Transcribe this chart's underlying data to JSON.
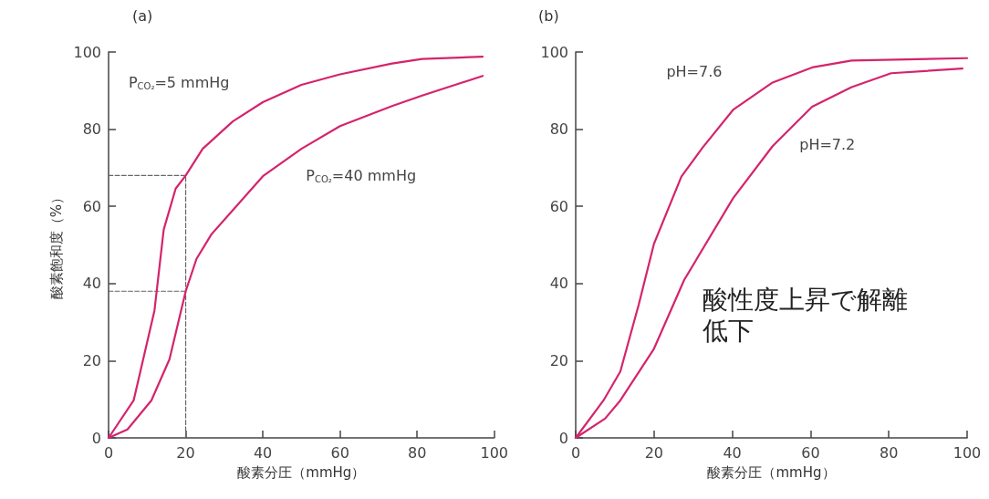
{
  "chart_data": [
    {
      "type": "line",
      "title": "(a)",
      "xlabel": "酸素分圧（mmHg）",
      "ylabel": "酸素飽和度（%）",
      "xlim": [
        0,
        100
      ],
      "ylim": [
        0,
        100
      ],
      "xticks": [
        0,
        20,
        40,
        60,
        80,
        100
      ],
      "yticks": [
        0,
        20,
        40,
        60,
        80,
        100
      ],
      "grid": false,
      "marker": "none",
      "line_style": "solid",
      "series": [
        {
          "name": "P$_{CO₂}$=5 mmHg",
          "color": "#d4246c",
          "x": [
            0,
            6.5,
            11.9,
            14.3,
            17.4,
            20,
            24.4,
            32.2,
            40,
            50,
            60,
            73.5,
            81.3,
            97
          ],
          "values": [
            0,
            9.7,
            33,
            54,
            64.6,
            68,
            74.9,
            82,
            87,
            91.5,
            94.2,
            97,
            98.2,
            98.8
          ]
        },
        {
          "name": "P$_{CO₂}$=40 mmHg",
          "color": "#d4246c",
          "x": [
            0,
            4.9,
            11.1,
            15.8,
            20,
            22.8,
            26.7,
            32.2,
            40,
            50,
            60,
            73.5,
            81.3,
            97
          ],
          "values": [
            0,
            2.2,
            9.7,
            20.4,
            38,
            46.4,
            52.8,
            59,
            67.8,
            74.9,
            80.8,
            86,
            88.7,
            93.8
          ]
        },
        {
          "color": "#666666",
          "line_style": "dashed",
          "x": [
            0,
            20,
            20
          ],
          "values": [
            68,
            68,
            0
          ]
        },
        {
          "color": "#666666",
          "line_style": "dashed",
          "x": [
            0,
            20
          ],
          "values": [
            38,
            38
          ]
        }
      ]
    },
    {
      "type": "line",
      "title": "(b)",
      "xlabel": "酸素分圧（mmHg）",
      "xlim": [
        0,
        100
      ],
      "ylim": [
        0,
        100
      ],
      "xticks": [
        0,
        20,
        40,
        60,
        80,
        100
      ],
      "yticks": [
        0,
        20,
        40,
        60,
        80,
        100
      ],
      "grid": false,
      "marker": "none",
      "line_style": "solid",
      "annotations": [
        "酸性度上昇で解離低下"
      ],
      "series": [
        {
          "name": "pH=7.6",
          "color": "#d4246c",
          "x": [
            0,
            7.1,
            11.4,
            16.1,
            20,
            27,
            32.4,
            40.2,
            50.3,
            60.4,
            70.5,
            100
          ],
          "values": [
            0,
            9.7,
            17.2,
            34.5,
            50.3,
            67.7,
            75.2,
            85,
            92.1,
            96,
            97.8,
            98.4
          ]
        },
        {
          "name": "pH=7.2",
          "color": "#d4246c",
          "x": [
            0,
            7.5,
            11.4,
            20,
            27.7,
            40.2,
            50.3,
            60.4,
            70.5,
            80.6,
            98.8
          ],
          "values": [
            0,
            5,
            9.7,
            23.1,
            40.9,
            62.1,
            75.6,
            85.8,
            90.9,
            94.5,
            95.7
          ]
        }
      ]
    }
  ]
}
